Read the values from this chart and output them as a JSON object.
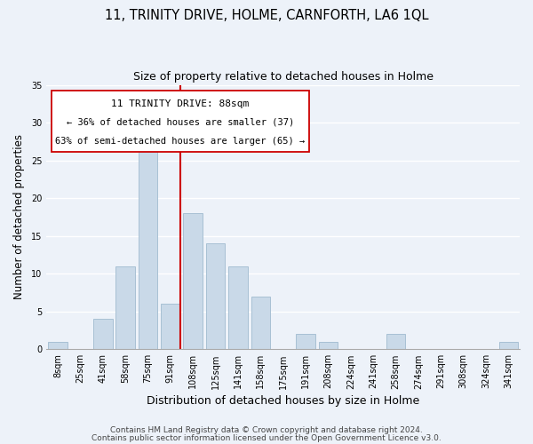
{
  "title": "11, TRINITY DRIVE, HOLME, CARNFORTH, LA6 1QL",
  "subtitle": "Size of property relative to detached houses in Holme",
  "xlabel": "Distribution of detached houses by size in Holme",
  "ylabel": "Number of detached properties",
  "bar_labels": [
    "8sqm",
    "25sqm",
    "41sqm",
    "58sqm",
    "75sqm",
    "91sqm",
    "108sqm",
    "125sqm",
    "141sqm",
    "158sqm",
    "175sqm",
    "191sqm",
    "208sqm",
    "224sqm",
    "241sqm",
    "258sqm",
    "274sqm",
    "291sqm",
    "308sqm",
    "324sqm",
    "341sqm"
  ],
  "bar_values": [
    1,
    0,
    4,
    11,
    27,
    6,
    18,
    14,
    11,
    7,
    0,
    2,
    1,
    0,
    0,
    2,
    0,
    0,
    0,
    0,
    1
  ],
  "bar_color": "#c9d9e8",
  "bar_edgecolor": "#a8c0d4",
  "vline_idx": 5,
  "vline_color": "#cc0000",
  "annotation_title": "11 TRINITY DRIVE: 88sqm",
  "annotation_line1": "← 36% of detached houses are smaller (37)",
  "annotation_line2": "63% of semi-detached houses are larger (65) →",
  "annotation_box_color": "#ffffff",
  "annotation_box_edgecolor": "#cc0000",
  "ylim": [
    0,
    35
  ],
  "yticks": [
    0,
    5,
    10,
    15,
    20,
    25,
    30,
    35
  ],
  "footer1": "Contains HM Land Registry data © Crown copyright and database right 2024.",
  "footer2": "Contains public sector information licensed under the Open Government Licence v3.0.",
  "bg_color": "#edf2f9",
  "grid_color": "#ffffff",
  "title_fontsize": 10.5,
  "subtitle_fontsize": 9,
  "xlabel_fontsize": 9,
  "ylabel_fontsize": 8.5,
  "tick_fontsize": 7,
  "annotation_title_fontsize": 8,
  "annotation_text_fontsize": 7.5,
  "footer_fontsize": 6.5
}
